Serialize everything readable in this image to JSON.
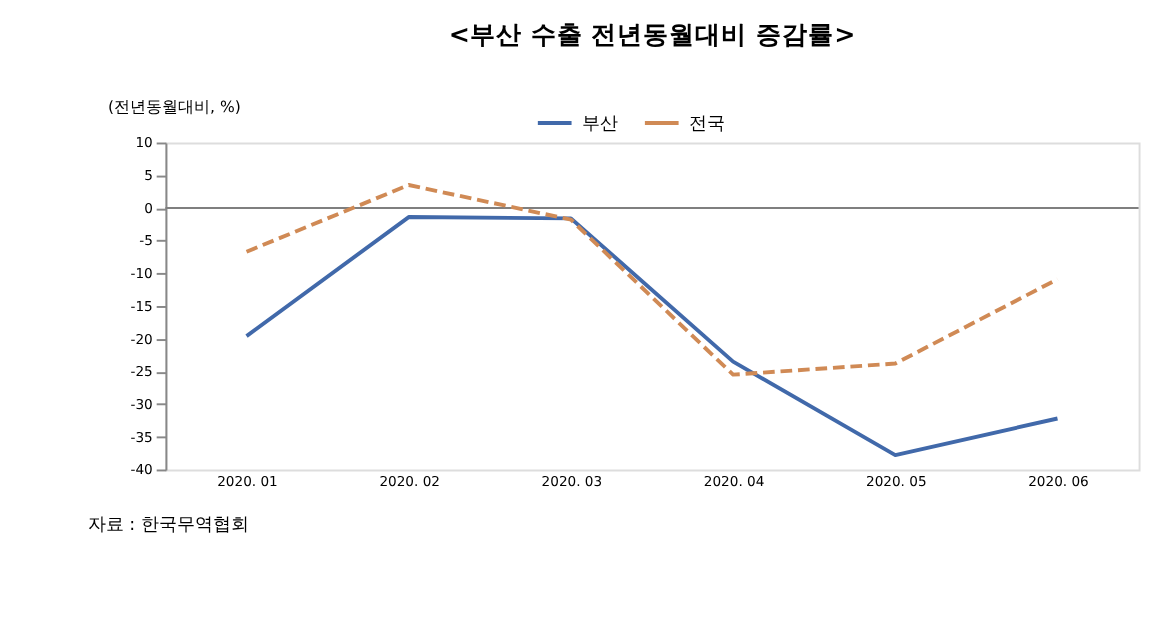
{
  "chart_data": {
    "type": "line",
    "title": "<부산 수출 전년동월대비 증감률>",
    "ylabel": "(전년동월대비, %)",
    "categories": [
      "2020. 01",
      "2020. 02",
      "2020. 03",
      "2020. 04",
      "2020. 05",
      "2020. 06"
    ],
    "series": [
      {
        "name": "부산",
        "color": "#4169aa",
        "values": [
          -19.6,
          -1.4,
          -1.6,
          -23.5,
          -37.8,
          -32.2
        ],
        "line_style": "solid"
      },
      {
        "name": "전국",
        "color": "#d08a55",
        "values": [
          -6.7,
          3.5,
          -1.8,
          -25.5,
          -23.8,
          -10.9
        ],
        "line_style": "dashed"
      }
    ],
    "ylim": [
      -40,
      10
    ],
    "yticks": [
      10,
      5,
      0,
      -5,
      -10,
      -15,
      -20,
      -25,
      -30,
      -35,
      -40
    ],
    "ref_lines": [
      {
        "axis": "y",
        "value": 0,
        "color": "#7f7f7f"
      }
    ],
    "grid": false,
    "legend": "top",
    "marker": "none",
    "annotations": [
      "자료 : 한국무역협회"
    ]
  }
}
